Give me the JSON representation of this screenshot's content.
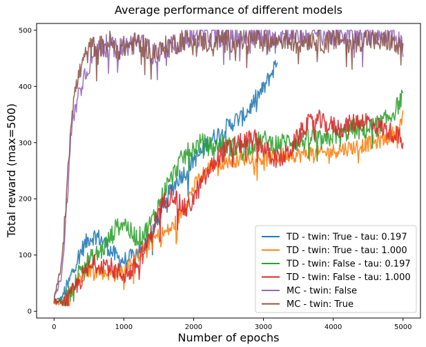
{
  "chart_data": {
    "type": "line",
    "title": "Average performance of different models",
    "xlabel": "Number of epochs",
    "ylabel": "Total reward (max=500)",
    "xlim": [
      -250,
      5250
    ],
    "ylim": [
      -12,
      512
    ],
    "xticks": [
      0,
      1000,
      2000,
      3000,
      4000,
      5000
    ],
    "yticks": [
      0,
      100,
      200,
      300,
      400,
      500
    ],
    "grid": false,
    "legend_position": "lower-right",
    "series": [
      {
        "name": "TD - twin: True - tau: 0.197",
        "color": "#1f77b4",
        "noise": 16,
        "x": [
          0,
          100,
          200,
          300,
          400,
          500,
          600,
          700,
          800,
          900,
          1000,
          1100,
          1200,
          1300,
          1400,
          1500,
          1600,
          1700,
          1800,
          1900,
          2000,
          2100,
          2200,
          2300,
          2400,
          2500,
          2600,
          2700,
          2800,
          2900,
          3000,
          3100,
          3200
        ],
        "y": [
          18,
          22,
          45,
          85,
          110,
          130,
          135,
          125,
          110,
          95,
          90,
          95,
          105,
          120,
          140,
          165,
          200,
          220,
          240,
          250,
          270,
          280,
          300,
          310,
          320,
          330,
          340,
          345,
          360,
          380,
          395,
          420,
          445
        ]
      },
      {
        "name": "TD - twin: True - tau: 1.000",
        "color": "#ff7f0e",
        "noise": 14,
        "x": [
          0,
          100,
          200,
          300,
          400,
          500,
          600,
          700,
          800,
          900,
          1000,
          1100,
          1200,
          1300,
          1400,
          1500,
          1600,
          1700,
          1800,
          1900,
          2000,
          2100,
          2200,
          2300,
          2400,
          2500,
          2600,
          2700,
          2800,
          2900,
          3000,
          3100,
          3200,
          3300,
          3400,
          3500,
          3600,
          3700,
          3800,
          3900,
          4000,
          4100,
          4200,
          4300,
          4400,
          4500,
          4600,
          4700,
          4800,
          4900,
          5000
        ],
        "y": [
          16,
          15,
          20,
          45,
          65,
          75,
          72,
          70,
          68,
          65,
          75,
          90,
          100,
          115,
          125,
          135,
          140,
          150,
          170,
          195,
          220,
          240,
          255,
          262,
          265,
          268,
          270,
          272,
          275,
          275,
          270,
          272,
          275,
          278,
          280,
          278,
          280,
          282,
          280,
          282,
          285,
          288,
          290,
          292,
          295,
          298,
          300,
          305,
          310,
          320,
          345
        ]
      },
      {
        "name": "TD - twin: False - tau: 0.197",
        "color": "#2ca02c",
        "noise": 18,
        "x": [
          0,
          100,
          200,
          300,
          400,
          500,
          600,
          700,
          800,
          900,
          1000,
          1100,
          1200,
          1300,
          1400,
          1500,
          1600,
          1700,
          1800,
          1900,
          2000,
          2100,
          2200,
          2300,
          2400,
          2500,
          2600,
          2700,
          2800,
          2900,
          3000,
          3100,
          3200,
          3300,
          3400,
          3500,
          3600,
          3700,
          3800,
          3900,
          4000,
          4100,
          4200,
          4300,
          4400,
          4500,
          4600,
          4700,
          4800,
          4900,
          5000
        ],
        "y": [
          16,
          18,
          25,
          55,
          80,
          90,
          100,
          110,
          130,
          150,
          160,
          140,
          130,
          140,
          160,
          190,
          220,
          240,
          265,
          280,
          290,
          300,
          295,
          290,
          300,
          295,
          290,
          292,
          295,
          300,
          305,
          300,
          298,
          300,
          305,
          300,
          305,
          310,
          305,
          300,
          315,
          310,
          320,
          325,
          320,
          325,
          330,
          335,
          345,
          360,
          385
        ]
      },
      {
        "name": "TD - twin: False - tau: 1.000",
        "color": "#d62728",
        "noise": 18,
        "x": [
          0,
          100,
          200,
          300,
          400,
          500,
          600,
          700,
          800,
          900,
          1000,
          1100,
          1200,
          1300,
          1400,
          1500,
          1600,
          1700,
          1800,
          1900,
          2000,
          2100,
          2200,
          2300,
          2400,
          2500,
          2600,
          2700,
          2800,
          2900,
          3000,
          3100,
          3200,
          3300,
          3400,
          3500,
          3600,
          3700,
          3800,
          3900,
          4000,
          4100,
          4200,
          4300,
          4400,
          4500,
          4600,
          4700,
          4800,
          4900,
          5000
        ],
        "y": [
          18,
          14,
          18,
          40,
          60,
          75,
          85,
          85,
          80,
          70,
          65,
          70,
          85,
          110,
          140,
          175,
          200,
          210,
          190,
          180,
          200,
          225,
          245,
          265,
          280,
          290,
          295,
          300,
          305,
          305,
          290,
          280,
          270,
          275,
          290,
          310,
          330,
          335,
          340,
          330,
          330,
          325,
          330,
          335,
          340,
          338,
          330,
          325,
          320,
          315,
          300
        ]
      },
      {
        "name": "MC - twin: False",
        "color": "#9467bd",
        "noise": 20,
        "x": [
          0,
          100,
          150,
          200,
          250,
          300,
          400,
          500,
          600,
          700,
          800,
          900,
          1000,
          1100,
          1200,
          1300,
          1400,
          1500,
          1600,
          1700,
          1800,
          1900,
          2000,
          2100,
          2200,
          2300,
          2400,
          2500,
          2600,
          2700,
          2800,
          2900,
          3000,
          3100,
          3200,
          3300,
          3400,
          3500,
          3600,
          3700,
          3800,
          3900,
          4000,
          4100,
          4200,
          4300,
          4400,
          4500,
          4600,
          4700,
          4800,
          4900,
          5000
        ],
        "y": [
          20,
          60,
          120,
          230,
          320,
          360,
          410,
          440,
          460,
          475,
          470,
          465,
          470,
          475,
          480,
          470,
          460,
          455,
          465,
          470,
          480,
          485,
          488,
          490,
          492,
          488,
          490,
          492,
          490,
          488,
          490,
          492,
          490,
          488,
          490,
          492,
          494,
          492,
          490,
          492,
          494,
          492,
          490,
          492,
          494,
          492,
          490,
          492,
          494,
          492,
          490,
          485,
          480
        ]
      },
      {
        "name": "MC - twin: True",
        "color": "#8c564b",
        "noise": 20,
        "x": [
          0,
          100,
          150,
          200,
          250,
          300,
          400,
          500,
          600,
          700,
          800,
          900,
          1000,
          1100,
          1200,
          1300,
          1400,
          1500,
          1600,
          1700,
          1800,
          1900,
          2000,
          2100,
          2200,
          2300,
          2400,
          2500,
          2600,
          2700,
          2800,
          2900,
          3000,
          3100,
          3200,
          3300,
          3400,
          3500,
          3600,
          3700,
          3800,
          3900,
          4000,
          4100,
          4200,
          4300,
          4400,
          4500,
          4600,
          4700,
          4800,
          4900,
          5000
        ],
        "y": [
          20,
          80,
          150,
          260,
          350,
          390,
          440,
          465,
          475,
          470,
          480,
          465,
          470,
          475,
          478,
          470,
          465,
          460,
          470,
          475,
          480,
          485,
          488,
          482,
          478,
          480,
          485,
          482,
          478,
          480,
          485,
          482,
          480,
          478,
          482,
          485,
          480,
          478,
          482,
          485,
          480,
          478,
          482,
          485,
          480,
          478,
          482,
          485,
          480,
          478,
          482,
          470,
          465
        ]
      }
    ]
  }
}
